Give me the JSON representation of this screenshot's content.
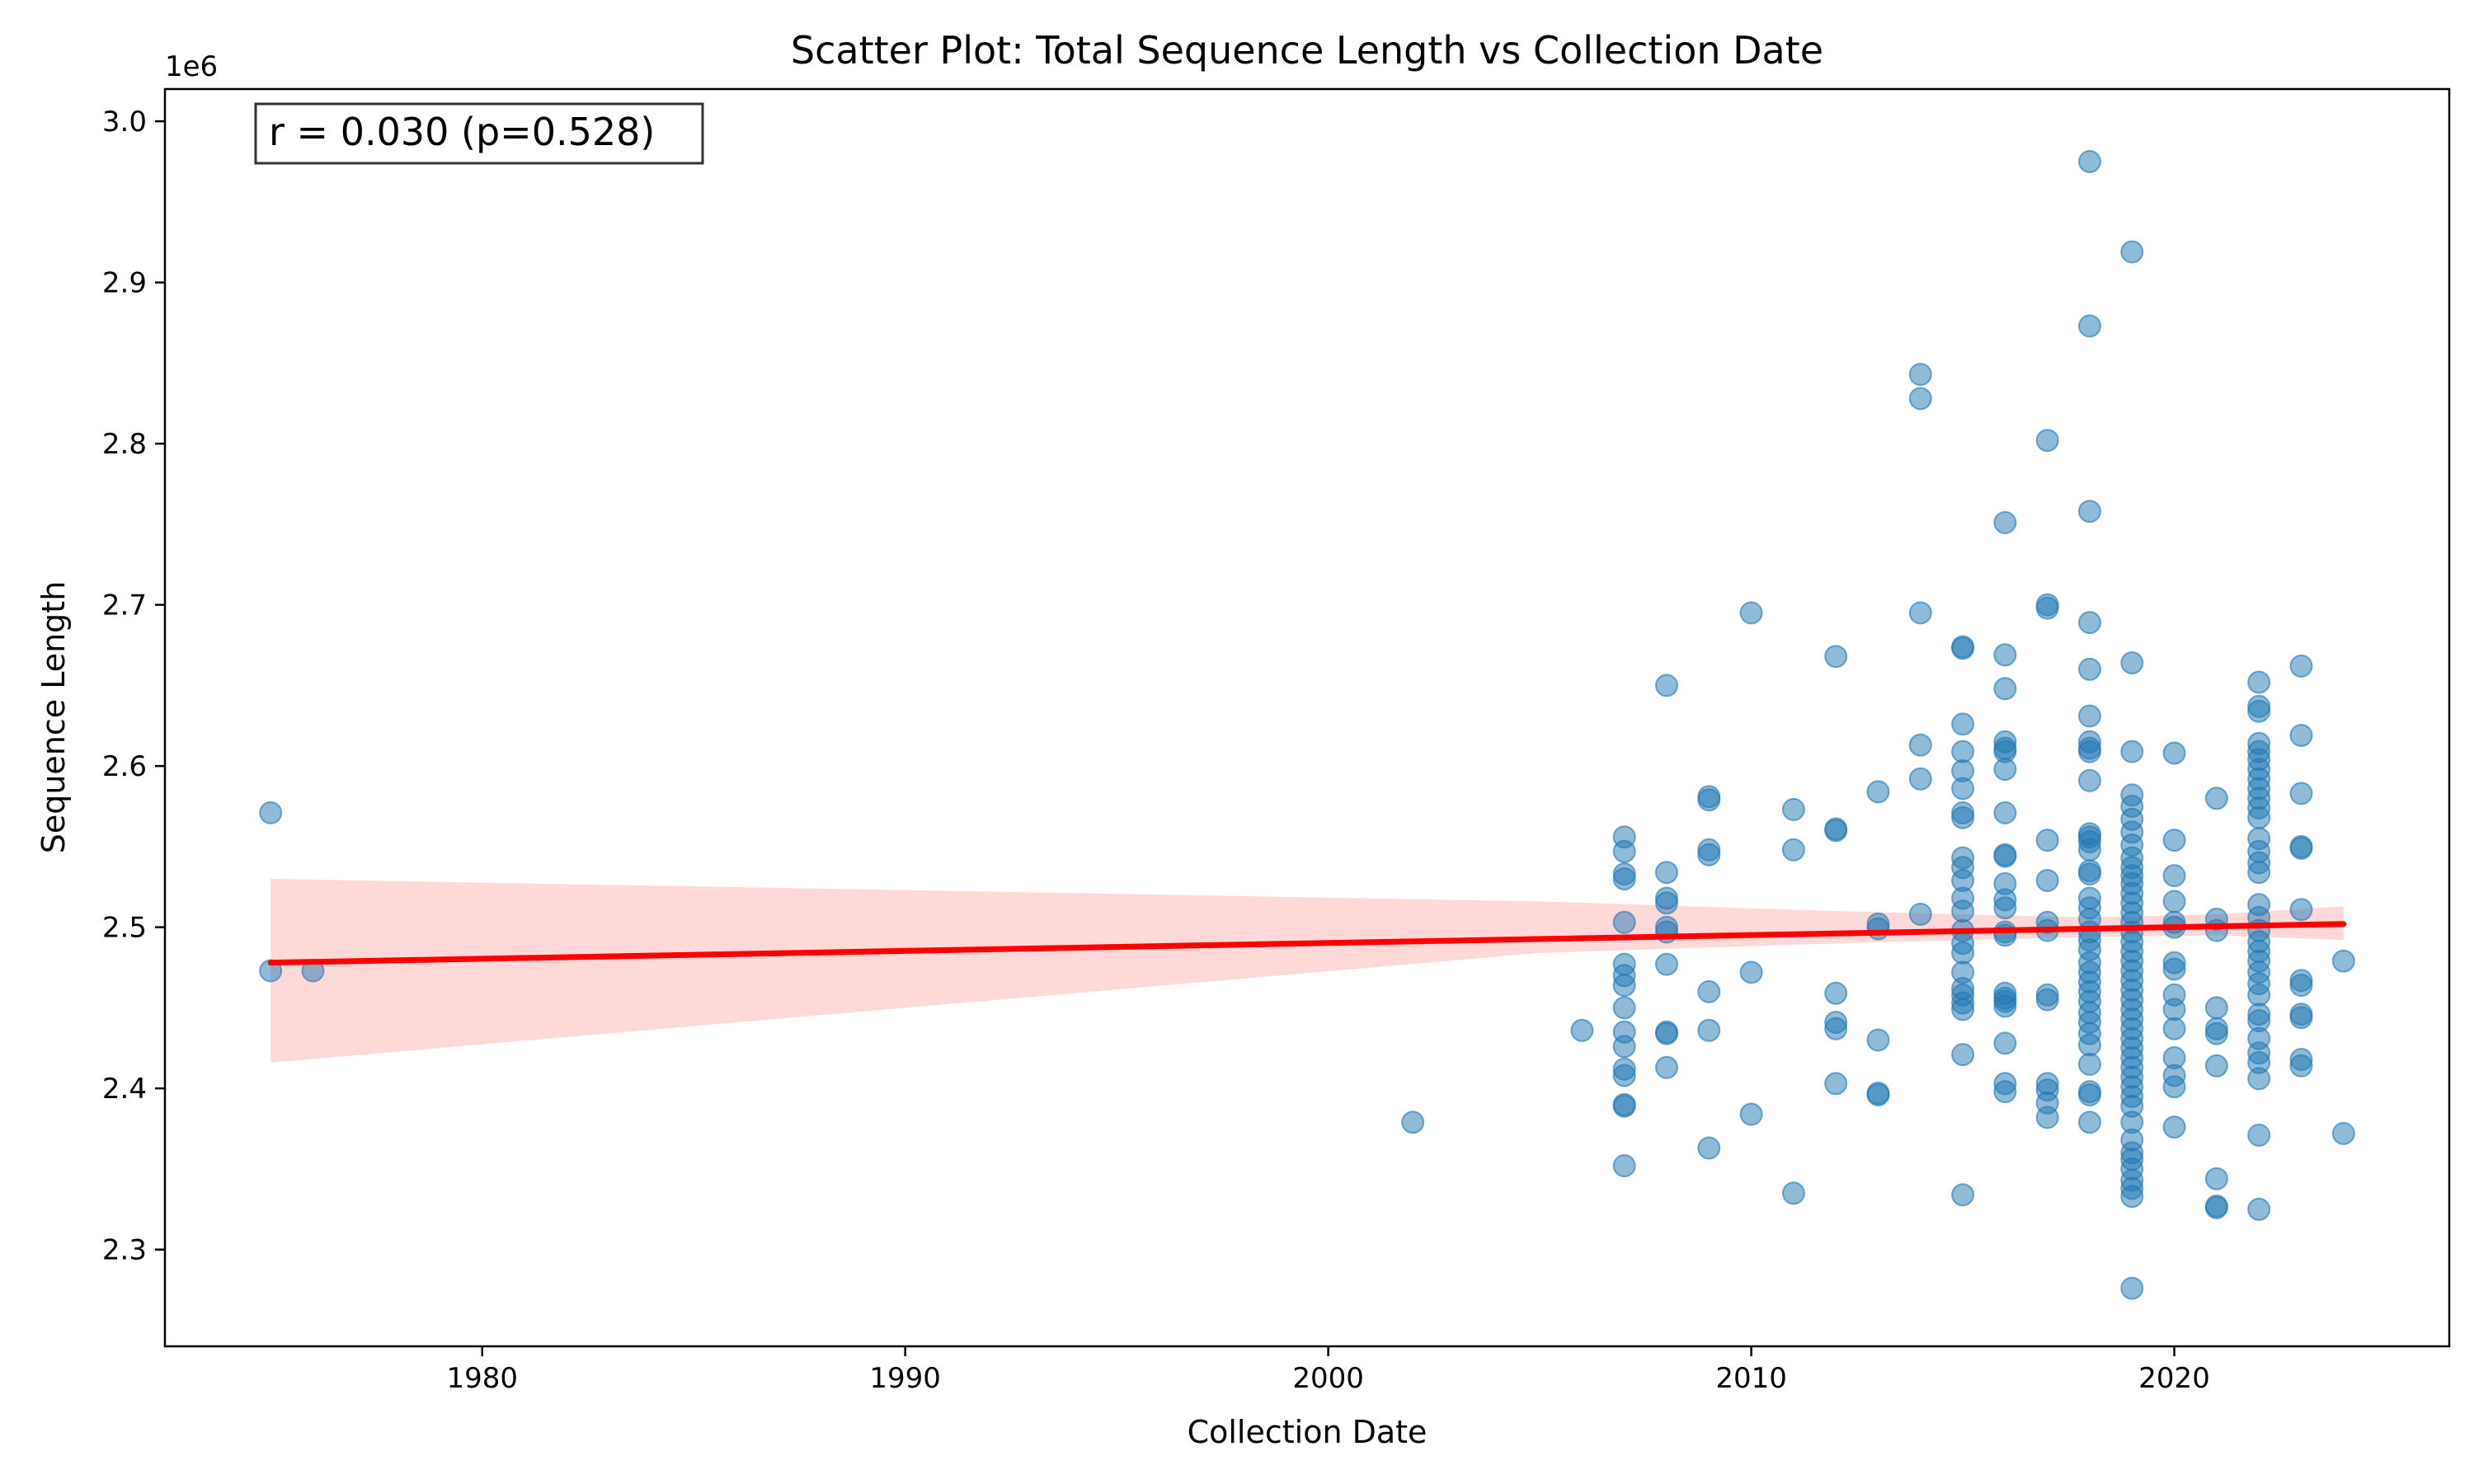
{
  "chart_data": {
    "type": "scatter",
    "title": "Scatter Plot: Total Sequence Length vs Collection Date",
    "xlabel": "Collection Date",
    "ylabel": "Sequence Length",
    "y_offset_label": "1e6",
    "y_scale_factor": 1000000,
    "xlim": [
      1972.5,
      2026.5
    ],
    "ylim": [
      2240000,
      3020000
    ],
    "x_ticks": [
      1980,
      1990,
      2000,
      2010,
      2020
    ],
    "y_ticks": [
      2300000,
      2400000,
      2500000,
      2600000,
      2700000,
      2800000,
      2900000,
      3000000
    ],
    "y_tick_labels": [
      "2.3",
      "2.4",
      "2.5",
      "2.6",
      "2.7",
      "2.8",
      "2.9",
      "3.0"
    ],
    "grid": false,
    "annotation": "r = 0.030 (p=0.528)",
    "colors": {
      "points": "#1f77b4",
      "regression_line": "#ff0000",
      "confidence_band": "#ff9999"
    },
    "regression": {
      "x": [
        1975,
        2024
      ],
      "y": [
        2478000,
        2502000
      ]
    },
    "confidence_band": [
      {
        "x": 1975,
        "lower": 2416000,
        "upper": 2530000
      },
      {
        "x": 1990,
        "lower": 2450000,
        "upper": 2523000
      },
      {
        "x": 2005,
        "lower": 2484000,
        "upper": 2516000
      },
      {
        "x": 2012,
        "lower": 2490000,
        "upper": 2510000
      },
      {
        "x": 2018,
        "lower": 2494000,
        "upper": 2506000
      },
      {
        "x": 2021,
        "lower": 2495000,
        "upper": 2508000
      },
      {
        "x": 2024,
        "lower": 2492000,
        "upper": 2513000
      }
    ],
    "points": [
      {
        "x": 1975,
        "y": 2571000
      },
      {
        "x": 1975,
        "y": 2473000
      },
      {
        "x": 1976,
        "y": 2473000
      },
      {
        "x": 2002,
        "y": 2379000
      },
      {
        "x": 2006,
        "y": 2436000
      },
      {
        "x": 2007,
        "y": 2556000
      },
      {
        "x": 2007,
        "y": 2547000
      },
      {
        "x": 2007,
        "y": 2533000
      },
      {
        "x": 2007,
        "y": 2530000
      },
      {
        "x": 2007,
        "y": 2503000
      },
      {
        "x": 2007,
        "y": 2477000
      },
      {
        "x": 2007,
        "y": 2470000
      },
      {
        "x": 2007,
        "y": 2464000
      },
      {
        "x": 2007,
        "y": 2450000
      },
      {
        "x": 2007,
        "y": 2435000
      },
      {
        "x": 2007,
        "y": 2426000
      },
      {
        "x": 2007,
        "y": 2412000
      },
      {
        "x": 2007,
        "y": 2408000
      },
      {
        "x": 2007,
        "y": 2390000
      },
      {
        "x": 2007,
        "y": 2389000
      },
      {
        "x": 2007,
        "y": 2352000
      },
      {
        "x": 2008,
        "y": 2650000
      },
      {
        "x": 2008,
        "y": 2534000
      },
      {
        "x": 2008,
        "y": 2518000
      },
      {
        "x": 2008,
        "y": 2515000
      },
      {
        "x": 2008,
        "y": 2500000
      },
      {
        "x": 2008,
        "y": 2497000
      },
      {
        "x": 2008,
        "y": 2477000
      },
      {
        "x": 2008,
        "y": 2435000
      },
      {
        "x": 2008,
        "y": 2434000
      },
      {
        "x": 2008,
        "y": 2413000
      },
      {
        "x": 2009,
        "y": 2581000
      },
      {
        "x": 2009,
        "y": 2579000
      },
      {
        "x": 2009,
        "y": 2548000
      },
      {
        "x": 2009,
        "y": 2545000
      },
      {
        "x": 2009,
        "y": 2460000
      },
      {
        "x": 2009,
        "y": 2436000
      },
      {
        "x": 2009,
        "y": 2363000
      },
      {
        "x": 2010,
        "y": 2695000
      },
      {
        "x": 2010,
        "y": 2472000
      },
      {
        "x": 2010,
        "y": 2384000
      },
      {
        "x": 2011,
        "y": 2573000
      },
      {
        "x": 2011,
        "y": 2548000
      },
      {
        "x": 2011,
        "y": 2335000
      },
      {
        "x": 2012,
        "y": 2668000
      },
      {
        "x": 2012,
        "y": 2561000
      },
      {
        "x": 2012,
        "y": 2560000
      },
      {
        "x": 2012,
        "y": 2459000
      },
      {
        "x": 2012,
        "y": 2441000
      },
      {
        "x": 2012,
        "y": 2437000
      },
      {
        "x": 2012,
        "y": 2403000
      },
      {
        "x": 2013,
        "y": 2584000
      },
      {
        "x": 2013,
        "y": 2502000
      },
      {
        "x": 2013,
        "y": 2499000
      },
      {
        "x": 2013,
        "y": 2430000
      },
      {
        "x": 2013,
        "y": 2397000
      },
      {
        "x": 2013,
        "y": 2396000
      },
      {
        "x": 2014,
        "y": 2843000
      },
      {
        "x": 2014,
        "y": 2828000
      },
      {
        "x": 2014,
        "y": 2695000
      },
      {
        "x": 2014,
        "y": 2613000
      },
      {
        "x": 2014,
        "y": 2592000
      },
      {
        "x": 2014,
        "y": 2508000
      },
      {
        "x": 2015,
        "y": 2674000
      },
      {
        "x": 2015,
        "y": 2673000
      },
      {
        "x": 2015,
        "y": 2626000
      },
      {
        "x": 2015,
        "y": 2609000
      },
      {
        "x": 2015,
        "y": 2597000
      },
      {
        "x": 2015,
        "y": 2586000
      },
      {
        "x": 2015,
        "y": 2571000
      },
      {
        "x": 2015,
        "y": 2568000
      },
      {
        "x": 2015,
        "y": 2543000
      },
      {
        "x": 2015,
        "y": 2537000
      },
      {
        "x": 2015,
        "y": 2529000
      },
      {
        "x": 2015,
        "y": 2518000
      },
      {
        "x": 2015,
        "y": 2510000
      },
      {
        "x": 2015,
        "y": 2498000
      },
      {
        "x": 2015,
        "y": 2490000
      },
      {
        "x": 2015,
        "y": 2484000
      },
      {
        "x": 2015,
        "y": 2472000
      },
      {
        "x": 2015,
        "y": 2462000
      },
      {
        "x": 2015,
        "y": 2458000
      },
      {
        "x": 2015,
        "y": 2453000
      },
      {
        "x": 2015,
        "y": 2449000
      },
      {
        "x": 2015,
        "y": 2421000
      },
      {
        "x": 2015,
        "y": 2334000
      },
      {
        "x": 2016,
        "y": 2751000
      },
      {
        "x": 2016,
        "y": 2669000
      },
      {
        "x": 2016,
        "y": 2648000
      },
      {
        "x": 2016,
        "y": 2615000
      },
      {
        "x": 2016,
        "y": 2611000
      },
      {
        "x": 2016,
        "y": 2609000
      },
      {
        "x": 2016,
        "y": 2598000
      },
      {
        "x": 2016,
        "y": 2571000
      },
      {
        "x": 2016,
        "y": 2545000
      },
      {
        "x": 2016,
        "y": 2544000
      },
      {
        "x": 2016,
        "y": 2527000
      },
      {
        "x": 2016,
        "y": 2517000
      },
      {
        "x": 2016,
        "y": 2512000
      },
      {
        "x": 2016,
        "y": 2497000
      },
      {
        "x": 2016,
        "y": 2495000
      },
      {
        "x": 2016,
        "y": 2459000
      },
      {
        "x": 2016,
        "y": 2456000
      },
      {
        "x": 2016,
        "y": 2454000
      },
      {
        "x": 2016,
        "y": 2451000
      },
      {
        "x": 2016,
        "y": 2428000
      },
      {
        "x": 2016,
        "y": 2403000
      },
      {
        "x": 2016,
        "y": 2398000
      },
      {
        "x": 2017,
        "y": 2802000
      },
      {
        "x": 2017,
        "y": 2700000
      },
      {
        "x": 2017,
        "y": 2698000
      },
      {
        "x": 2017,
        "y": 2554000
      },
      {
        "x": 2017,
        "y": 2529000
      },
      {
        "x": 2017,
        "y": 2503000
      },
      {
        "x": 2017,
        "y": 2498000
      },
      {
        "x": 2017,
        "y": 2458000
      },
      {
        "x": 2017,
        "y": 2455000
      },
      {
        "x": 2017,
        "y": 2403000
      },
      {
        "x": 2017,
        "y": 2399000
      },
      {
        "x": 2017,
        "y": 2391000
      },
      {
        "x": 2017,
        "y": 2382000
      },
      {
        "x": 2018,
        "y": 2975000
      },
      {
        "x": 2018,
        "y": 2873000
      },
      {
        "x": 2018,
        "y": 2758000
      },
      {
        "x": 2018,
        "y": 2689000
      },
      {
        "x": 2018,
        "y": 2660000
      },
      {
        "x": 2018,
        "y": 2631000
      },
      {
        "x": 2018,
        "y": 2615000
      },
      {
        "x": 2018,
        "y": 2611000
      },
      {
        "x": 2018,
        "y": 2609000
      },
      {
        "x": 2018,
        "y": 2591000
      },
      {
        "x": 2018,
        "y": 2558000
      },
      {
        "x": 2018,
        "y": 2556000
      },
      {
        "x": 2018,
        "y": 2553000
      },
      {
        "x": 2018,
        "y": 2548000
      },
      {
        "x": 2018,
        "y": 2535000
      },
      {
        "x": 2018,
        "y": 2533000
      },
      {
        "x": 2018,
        "y": 2518000
      },
      {
        "x": 2018,
        "y": 2512000
      },
      {
        "x": 2018,
        "y": 2505000
      },
      {
        "x": 2018,
        "y": 2497000
      },
      {
        "x": 2018,
        "y": 2492000
      },
      {
        "x": 2018,
        "y": 2486000
      },
      {
        "x": 2018,
        "y": 2478000
      },
      {
        "x": 2018,
        "y": 2472000
      },
      {
        "x": 2018,
        "y": 2466000
      },
      {
        "x": 2018,
        "y": 2460000
      },
      {
        "x": 2018,
        "y": 2454000
      },
      {
        "x": 2018,
        "y": 2447000
      },
      {
        "x": 2018,
        "y": 2441000
      },
      {
        "x": 2018,
        "y": 2434000
      },
      {
        "x": 2018,
        "y": 2427000
      },
      {
        "x": 2018,
        "y": 2415000
      },
      {
        "x": 2018,
        "y": 2398000
      },
      {
        "x": 2018,
        "y": 2396000
      },
      {
        "x": 2018,
        "y": 2379000
      },
      {
        "x": 2019,
        "y": 2919000
      },
      {
        "x": 2019,
        "y": 2664000
      },
      {
        "x": 2019,
        "y": 2609000
      },
      {
        "x": 2019,
        "y": 2582000
      },
      {
        "x": 2019,
        "y": 2575000
      },
      {
        "x": 2019,
        "y": 2567000
      },
      {
        "x": 2019,
        "y": 2559000
      },
      {
        "x": 2019,
        "y": 2551000
      },
      {
        "x": 2019,
        "y": 2543000
      },
      {
        "x": 2019,
        "y": 2537000
      },
      {
        "x": 2019,
        "y": 2532000
      },
      {
        "x": 2019,
        "y": 2527000
      },
      {
        "x": 2019,
        "y": 2521000
      },
      {
        "x": 2019,
        "y": 2515000
      },
      {
        "x": 2019,
        "y": 2509000
      },
      {
        "x": 2019,
        "y": 2503000
      },
      {
        "x": 2019,
        "y": 2497000
      },
      {
        "x": 2019,
        "y": 2491000
      },
      {
        "x": 2019,
        "y": 2485000
      },
      {
        "x": 2019,
        "y": 2479000
      },
      {
        "x": 2019,
        "y": 2473000
      },
      {
        "x": 2019,
        "y": 2467000
      },
      {
        "x": 2019,
        "y": 2461000
      },
      {
        "x": 2019,
        "y": 2455000
      },
      {
        "x": 2019,
        "y": 2449000
      },
      {
        "x": 2019,
        "y": 2443000
      },
      {
        "x": 2019,
        "y": 2437000
      },
      {
        "x": 2019,
        "y": 2431000
      },
      {
        "x": 2019,
        "y": 2425000
      },
      {
        "x": 2019,
        "y": 2419000
      },
      {
        "x": 2019,
        "y": 2413000
      },
      {
        "x": 2019,
        "y": 2407000
      },
      {
        "x": 2019,
        "y": 2401000
      },
      {
        "x": 2019,
        "y": 2395000
      },
      {
        "x": 2019,
        "y": 2389000
      },
      {
        "x": 2019,
        "y": 2379000
      },
      {
        "x": 2019,
        "y": 2368000
      },
      {
        "x": 2019,
        "y": 2360000
      },
      {
        "x": 2019,
        "y": 2356000
      },
      {
        "x": 2019,
        "y": 2350000
      },
      {
        "x": 2019,
        "y": 2343000
      },
      {
        "x": 2019,
        "y": 2338000
      },
      {
        "x": 2019,
        "y": 2333000
      },
      {
        "x": 2019,
        "y": 2276000
      },
      {
        "x": 2020,
        "y": 2608000
      },
      {
        "x": 2020,
        "y": 2554000
      },
      {
        "x": 2020,
        "y": 2532000
      },
      {
        "x": 2020,
        "y": 2516000
      },
      {
        "x": 2020,
        "y": 2503000
      },
      {
        "x": 2020,
        "y": 2500000
      },
      {
        "x": 2020,
        "y": 2478000
      },
      {
        "x": 2020,
        "y": 2474000
      },
      {
        "x": 2020,
        "y": 2458000
      },
      {
        "x": 2020,
        "y": 2449000
      },
      {
        "x": 2020,
        "y": 2437000
      },
      {
        "x": 2020,
        "y": 2419000
      },
      {
        "x": 2020,
        "y": 2408000
      },
      {
        "x": 2020,
        "y": 2401000
      },
      {
        "x": 2020,
        "y": 2376000
      },
      {
        "x": 2021,
        "y": 2580000
      },
      {
        "x": 2021,
        "y": 2505000
      },
      {
        "x": 2021,
        "y": 2498000
      },
      {
        "x": 2021,
        "y": 2450000
      },
      {
        "x": 2021,
        "y": 2437000
      },
      {
        "x": 2021,
        "y": 2434000
      },
      {
        "x": 2021,
        "y": 2414000
      },
      {
        "x": 2021,
        "y": 2344000
      },
      {
        "x": 2021,
        "y": 2327000
      },
      {
        "x": 2021,
        "y": 2326000
      },
      {
        "x": 2022,
        "y": 2652000
      },
      {
        "x": 2022,
        "y": 2637000
      },
      {
        "x": 2022,
        "y": 2634000
      },
      {
        "x": 2022,
        "y": 2614000
      },
      {
        "x": 2022,
        "y": 2609000
      },
      {
        "x": 2022,
        "y": 2604000
      },
      {
        "x": 2022,
        "y": 2598000
      },
      {
        "x": 2022,
        "y": 2592000
      },
      {
        "x": 2022,
        "y": 2586000
      },
      {
        "x": 2022,
        "y": 2580000
      },
      {
        "x": 2022,
        "y": 2574000
      },
      {
        "x": 2022,
        "y": 2568000
      },
      {
        "x": 2022,
        "y": 2555000
      },
      {
        "x": 2022,
        "y": 2547000
      },
      {
        "x": 2022,
        "y": 2540000
      },
      {
        "x": 2022,
        "y": 2534000
      },
      {
        "x": 2022,
        "y": 2514000
      },
      {
        "x": 2022,
        "y": 2506000
      },
      {
        "x": 2022,
        "y": 2498000
      },
      {
        "x": 2022,
        "y": 2491000
      },
      {
        "x": 2022,
        "y": 2485000
      },
      {
        "x": 2022,
        "y": 2479000
      },
      {
        "x": 2022,
        "y": 2472000
      },
      {
        "x": 2022,
        "y": 2465000
      },
      {
        "x": 2022,
        "y": 2458000
      },
      {
        "x": 2022,
        "y": 2446000
      },
      {
        "x": 2022,
        "y": 2442000
      },
      {
        "x": 2022,
        "y": 2431000
      },
      {
        "x": 2022,
        "y": 2422000
      },
      {
        "x": 2022,
        "y": 2416000
      },
      {
        "x": 2022,
        "y": 2406000
      },
      {
        "x": 2022,
        "y": 2371000
      },
      {
        "x": 2022,
        "y": 2325000
      },
      {
        "x": 2023,
        "y": 2662000
      },
      {
        "x": 2023,
        "y": 2619000
      },
      {
        "x": 2023,
        "y": 2583000
      },
      {
        "x": 2023,
        "y": 2550000
      },
      {
        "x": 2023,
        "y": 2549000
      },
      {
        "x": 2023,
        "y": 2511000
      },
      {
        "x": 2023,
        "y": 2467000
      },
      {
        "x": 2023,
        "y": 2464000
      },
      {
        "x": 2023,
        "y": 2446000
      },
      {
        "x": 2023,
        "y": 2444000
      },
      {
        "x": 2023,
        "y": 2418000
      },
      {
        "x": 2023,
        "y": 2414000
      },
      {
        "x": 2024,
        "y": 2479000
      },
      {
        "x": 2024,
        "y": 2372000
      }
    ]
  }
}
